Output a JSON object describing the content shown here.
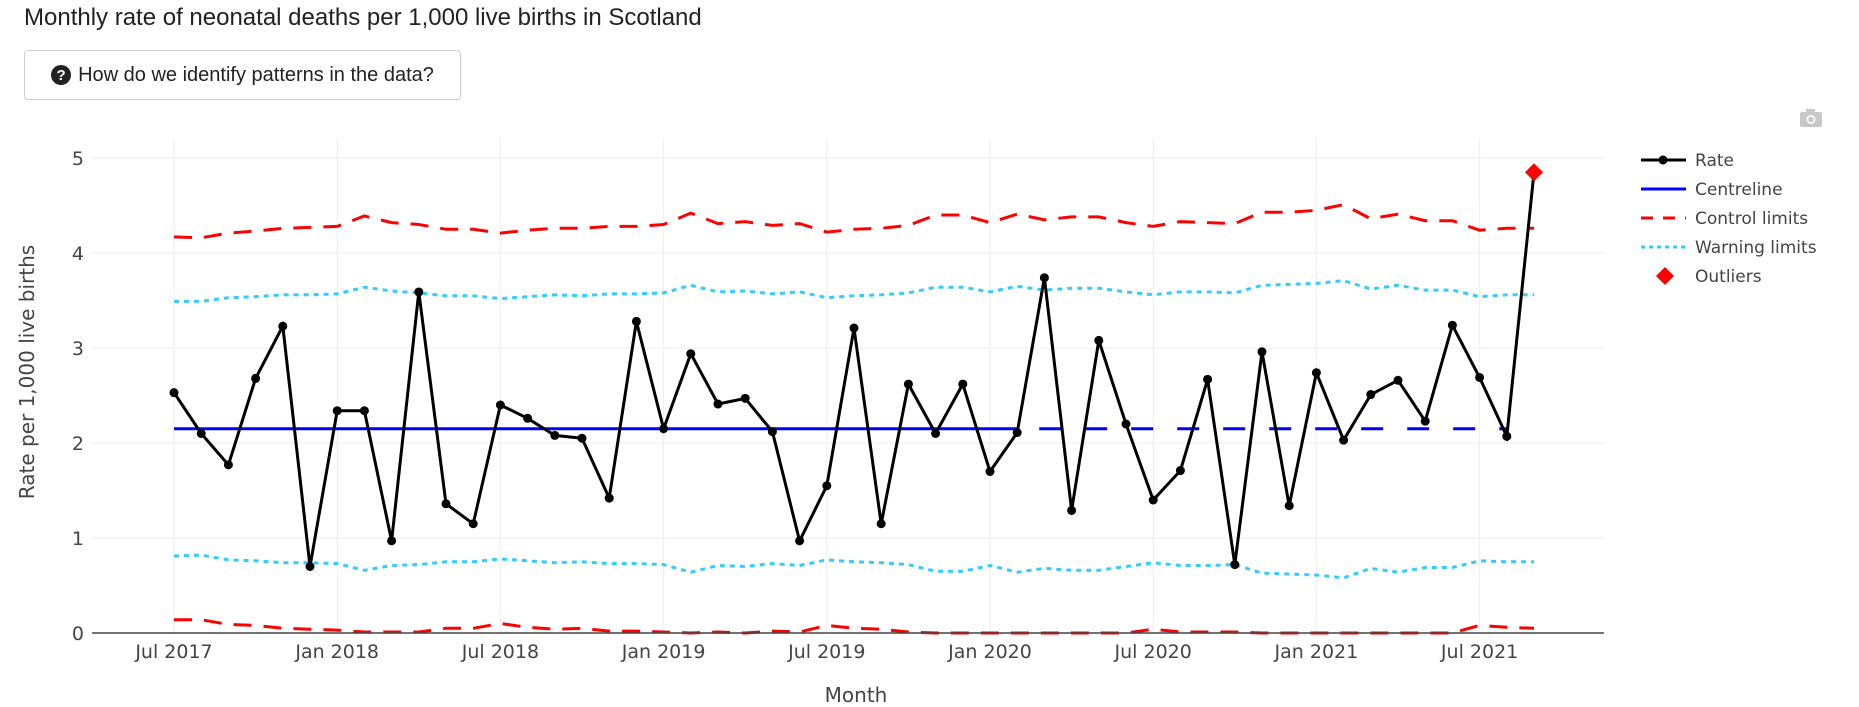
{
  "page": {
    "title": "Monthly rate of neonatal deaths per 1,000 live births in Scotland",
    "help_button_label": "How do we identify patterns in the data?",
    "help_icon": "question-circle-icon",
    "toolbar_icon": "camera-icon"
  },
  "colors": {
    "rate": "#000000",
    "centreline": "#0000ff",
    "control_limits": "#ff0000",
    "warning_limits": "#33ccff",
    "outliers": "#ff0000",
    "grid": "#eeeeee",
    "axis": "#444444"
  },
  "chart_data": {
    "type": "line",
    "title": "Monthly rate of neonatal deaths per 1,000 live births in Scotland",
    "xlabel": "Month",
    "ylabel": "Rate per 1,000 live births",
    "ylim": [
      0,
      5.2
    ],
    "yticks": [
      "0",
      "1",
      "2",
      "3",
      "4",
      "5"
    ],
    "xticks": [
      {
        "label": "Jul 2017",
        "month_index": 0
      },
      {
        "label": "Jan 2018",
        "month_index": 6
      },
      {
        "label": "Jul 2018",
        "month_index": 12
      },
      {
        "label": "Jan 2019",
        "month_index": 18
      },
      {
        "label": "Jul 2019",
        "month_index": 24
      },
      {
        "label": "Jan 2020",
        "month_index": 30
      },
      {
        "label": "Jul 2020",
        "month_index": 36
      },
      {
        "label": "Jan 2021",
        "month_index": 42
      },
      {
        "label": "Jul 2021",
        "month_index": 48
      }
    ],
    "grid": true,
    "legend_position": "right",
    "x": [
      "2017-07",
      "2017-08",
      "2017-09",
      "2017-10",
      "2017-11",
      "2017-12",
      "2018-01",
      "2018-02",
      "2018-03",
      "2018-04",
      "2018-05",
      "2018-06",
      "2018-07",
      "2018-08",
      "2018-09",
      "2018-10",
      "2018-11",
      "2018-12",
      "2019-01",
      "2019-02",
      "2019-03",
      "2019-04",
      "2019-05",
      "2019-06",
      "2019-07",
      "2019-08",
      "2019-09",
      "2019-10",
      "2019-11",
      "2019-12",
      "2020-01",
      "2020-02",
      "2020-03",
      "2020-04",
      "2020-05",
      "2020-06",
      "2020-07",
      "2020-08",
      "2020-09",
      "2020-10",
      "2020-11",
      "2020-12",
      "2021-01",
      "2021-02",
      "2021-03",
      "2021-04",
      "2021-05",
      "2021-06",
      "2021-07",
      "2021-08",
      "2021-09"
    ],
    "series": [
      {
        "name": "Rate",
        "style": "line-markers",
        "values": [
          2.53,
          2.1,
          1.77,
          2.68,
          3.23,
          0.7,
          2.34,
          2.34,
          0.97,
          3.59,
          1.36,
          1.15,
          2.4,
          2.26,
          2.08,
          2.05,
          1.42,
          3.28,
          2.15,
          2.94,
          2.41,
          2.47,
          2.12,
          0.97,
          1.55,
          3.21,
          1.15,
          2.62,
          2.1,
          2.62,
          1.7,
          2.11,
          3.74,
          1.29,
          3.08,
          2.2,
          1.4,
          1.71,
          2.67,
          0.72,
          2.96,
          1.34,
          2.74,
          2.03,
          2.51,
          2.66,
          2.23,
          3.24,
          2.69,
          2.07,
          4.85
        ]
      },
      {
        "name": "Centreline",
        "style": "solid",
        "value": 2.15,
        "solid_until_index": 31,
        "dashed_until_index": 50
      },
      {
        "name": "Control limits",
        "style": "dash",
        "upper": [
          4.17,
          4.16,
          4.21,
          4.23,
          4.26,
          4.27,
          4.28,
          4.39,
          4.32,
          4.3,
          4.25,
          4.25,
          4.21,
          4.24,
          4.26,
          4.26,
          4.28,
          4.28,
          4.3,
          4.42,
          4.31,
          4.33,
          4.29,
          4.31,
          4.22,
          4.25,
          4.26,
          4.29,
          4.4,
          4.4,
          4.32,
          4.41,
          4.35,
          4.38,
          4.38,
          4.32,
          4.28,
          4.33,
          4.32,
          4.31,
          4.43,
          4.43,
          4.45,
          4.51,
          4.36,
          4.41,
          4.34,
          4.34,
          4.24,
          4.26,
          4.26
        ],
        "lower": [
          0.14,
          0.14,
          0.09,
          0.08,
          0.05,
          0.04,
          0.03,
          0.01,
          0.01,
          0.01,
          0.05,
          0.05,
          0.1,
          0.06,
          0.04,
          0.05,
          0.02,
          0.02,
          0.01,
          0.0,
          0.01,
          0.0,
          0.02,
          0.01,
          0.08,
          0.05,
          0.04,
          0.01,
          0.0,
          0.0,
          0.0,
          0.0,
          0.0,
          0.0,
          0.0,
          0.0,
          0.04,
          0.01,
          0.01,
          0.01,
          0.0,
          0.0,
          0.0,
          0.0,
          0.0,
          0.0,
          0.0,
          0.0,
          0.08,
          0.06,
          0.05
        ]
      },
      {
        "name": "Warning limits",
        "style": "dot",
        "upper": [
          3.49,
          3.49,
          3.53,
          3.54,
          3.56,
          3.56,
          3.57,
          3.64,
          3.6,
          3.58,
          3.55,
          3.55,
          3.52,
          3.54,
          3.56,
          3.55,
          3.57,
          3.57,
          3.58,
          3.66,
          3.59,
          3.6,
          3.57,
          3.59,
          3.53,
          3.55,
          3.56,
          3.58,
          3.64,
          3.64,
          3.59,
          3.65,
          3.61,
          3.63,
          3.63,
          3.59,
          3.56,
          3.59,
          3.59,
          3.58,
          3.66,
          3.67,
          3.68,
          3.71,
          3.62,
          3.66,
          3.61,
          3.61,
          3.54,
          3.56,
          3.56
        ],
        "lower": [
          0.81,
          0.82,
          0.77,
          0.76,
          0.74,
          0.74,
          0.73,
          0.66,
          0.71,
          0.72,
          0.75,
          0.75,
          0.78,
          0.76,
          0.74,
          0.75,
          0.73,
          0.73,
          0.72,
          0.64,
          0.71,
          0.7,
          0.73,
          0.71,
          0.77,
          0.75,
          0.74,
          0.72,
          0.65,
          0.65,
          0.71,
          0.64,
          0.68,
          0.66,
          0.66,
          0.7,
          0.74,
          0.71,
          0.71,
          0.72,
          0.63,
          0.62,
          0.61,
          0.58,
          0.68,
          0.64,
          0.69,
          0.69,
          0.76,
          0.75,
          0.75
        ]
      },
      {
        "name": "Outliers",
        "style": "diamond-markers",
        "points": [
          {
            "x": "2021-09",
            "index": 50,
            "value": 4.85
          }
        ]
      }
    ],
    "legend": [
      "Rate",
      "Centreline",
      "Control limits",
      "Warning limits",
      "Outliers"
    ]
  }
}
